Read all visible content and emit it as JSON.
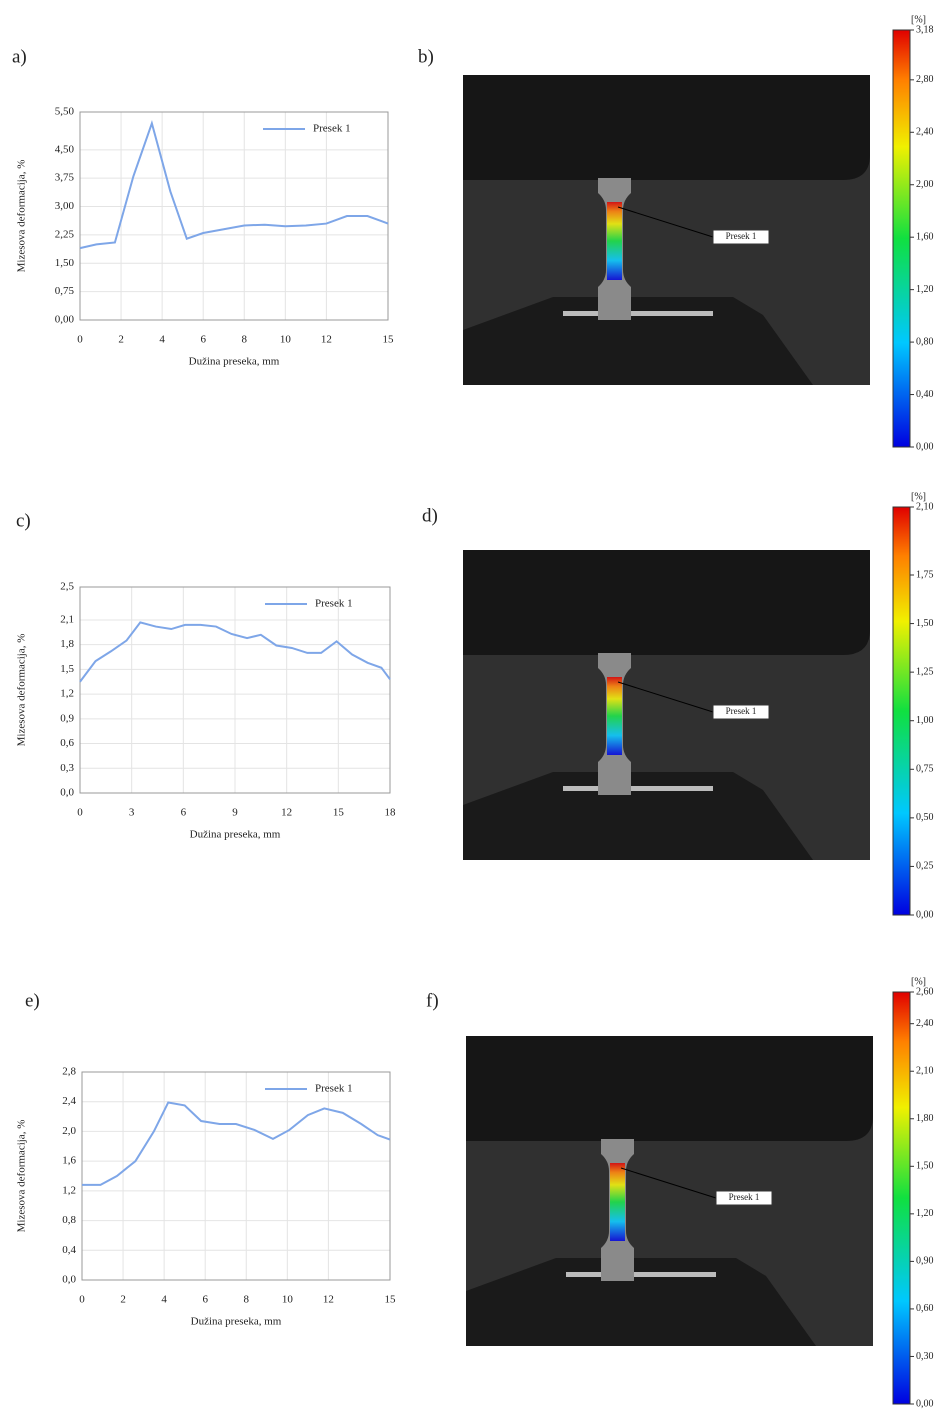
{
  "chart_data": [
    {
      "type": "line",
      "panel": "a)",
      "xlabel": "Dužina preseka, mm",
      "ylabel": "Mizesova deformacija, %",
      "x": [
        0,
        0.8,
        1.7,
        2.6,
        3.5,
        4.4,
        5.2,
        6,
        7,
        8,
        9,
        10,
        11,
        12,
        13,
        14,
        15
      ],
      "series": [
        {
          "name": "Presek 1",
          "color": "#7ea6e8",
          "values": [
            1.9,
            2.0,
            2.05,
            3.8,
            5.2,
            3.4,
            2.15,
            2.3,
            2.4,
            2.5,
            2.52,
            2.48,
            2.5,
            2.55,
            2.75,
            2.75,
            2.55
          ]
        }
      ],
      "xlim": [
        0,
        15
      ],
      "ylim": [
        0,
        5.5
      ],
      "xticks": [
        0,
        2,
        4,
        6,
        8,
        10,
        12,
        15
      ],
      "yticks": [
        {
          "value": 0,
          "label": "0,00"
        },
        {
          "value": 0.75,
          "label": "0,75"
        },
        {
          "value": 1.5,
          "label": "1,50"
        },
        {
          "value": 2.25,
          "label": "2,25"
        },
        {
          "value": 3,
          "label": "3,00"
        },
        {
          "value": 3.75,
          "label": "3,75"
        },
        {
          "value": 4.5,
          "label": "4,50"
        },
        {
          "value": 5.5,
          "label": "5,50"
        }
      ],
      "grid": true,
      "legend": "upper right"
    },
    {
      "type": "colorbar",
      "panel": "b)",
      "annotation": "Presek 1",
      "unit": "[%]",
      "ylim": [
        0,
        3.18
      ],
      "yticks": [
        {
          "value": 0,
          "label": "0,00"
        },
        {
          "value": 0.4,
          "label": "0,40"
        },
        {
          "value": 0.8,
          "label": "0,80"
        },
        {
          "value": 1.2,
          "label": "1,20"
        },
        {
          "value": 1.6,
          "label": "1,60"
        },
        {
          "value": 2,
          "label": "2,00"
        },
        {
          "value": 2.4,
          "label": "2,40"
        },
        {
          "value": 2.8,
          "label": "2,80"
        },
        {
          "value": 3.18,
          "label": "3,18"
        }
      ]
    },
    {
      "type": "line",
      "panel": "c)",
      "xlabel": "Dužina preseka, mm",
      "ylabel": "Mizesova deformacija, %",
      "x": [
        0,
        0.9,
        1.8,
        2.7,
        3.5,
        4.4,
        5.3,
        6.1,
        7,
        7.9,
        8.8,
        9.7,
        10.5,
        11.4,
        12.3,
        13.2,
        14,
        14.9,
        15.8,
        16.7,
        17.5,
        18
      ],
      "series": [
        {
          "name": "Presek 1",
          "color": "#7ea6e8",
          "values": [
            1.35,
            1.6,
            1.72,
            1.85,
            2.07,
            2.02,
            1.99,
            2.04,
            2.04,
            2.02,
            1.93,
            1.88,
            1.92,
            1.79,
            1.76,
            1.7,
            1.7,
            1.84,
            1.68,
            1.58,
            1.52,
            1.38
          ]
        }
      ],
      "xlim": [
        0,
        18
      ],
      "ylim": [
        0,
        2.5
      ],
      "xticks": [
        0,
        3,
        6,
        9,
        12,
        15,
        18
      ],
      "yticks": [
        {
          "value": 0,
          "label": "0,0"
        },
        {
          "value": 0.3,
          "label": "0,3"
        },
        {
          "value": 0.6,
          "label": "0,6"
        },
        {
          "value": 0.9,
          "label": "0,9"
        },
        {
          "value": 1.2,
          "label": "1,2"
        },
        {
          "value": 1.5,
          "label": "1,5"
        },
        {
          "value": 1.8,
          "label": "1,8"
        },
        {
          "value": 2.1,
          "label": "2,1"
        },
        {
          "value": 2.5,
          "label": "2,5"
        }
      ],
      "grid": true,
      "legend": "upper right"
    },
    {
      "type": "colorbar",
      "panel": "d)",
      "annotation": "Presek 1",
      "unit": "[%]",
      "ylim": [
        0,
        2.1
      ],
      "yticks": [
        {
          "value": 0,
          "label": "0,00"
        },
        {
          "value": 0.25,
          "label": "0,25"
        },
        {
          "value": 0.5,
          "label": "0,50"
        },
        {
          "value": 0.75,
          "label": "0,75"
        },
        {
          "value": 1,
          "label": "1,00"
        },
        {
          "value": 1.25,
          "label": "1,25"
        },
        {
          "value": 1.5,
          "label": "1,50"
        },
        {
          "value": 1.75,
          "label": "1,75"
        },
        {
          "value": 2.1,
          "label": "2,10"
        }
      ]
    },
    {
      "type": "line",
      "panel": "e)",
      "xlabel": "Dužina preseka, mm",
      "ylabel": "Mizesova deformacija, %",
      "x": [
        0,
        0.9,
        1.7,
        2.6,
        3.5,
        4.2,
        5,
        5.8,
        6.7,
        7.5,
        8.4,
        9.3,
        10.1,
        11,
        11.8,
        12.7,
        13.6,
        14.4,
        15
      ],
      "series": [
        {
          "name": "Presek 1",
          "color": "#7ea6e8",
          "values": [
            1.28,
            1.28,
            1.4,
            1.6,
            2.0,
            2.39,
            2.35,
            2.14,
            2.1,
            2.1,
            2.02,
            1.9,
            2.02,
            2.22,
            2.31,
            2.25,
            2.1,
            1.95,
            1.89
          ]
        }
      ],
      "xlim": [
        0,
        15
      ],
      "ylim": [
        0,
        2.8
      ],
      "xticks": [
        0,
        2,
        4,
        6,
        8,
        10,
        12,
        15
      ],
      "yticks": [
        {
          "value": 0,
          "label": "0,0"
        },
        {
          "value": 0.4,
          "label": "0,4"
        },
        {
          "value": 0.8,
          "label": "0,8"
        },
        {
          "value": 1.2,
          "label": "1,2"
        },
        {
          "value": 1.6,
          "label": "1,6"
        },
        {
          "value": 2,
          "label": "2,0"
        },
        {
          "value": 2.4,
          "label": "2,4"
        },
        {
          "value": 2.8,
          "label": "2,8"
        }
      ],
      "grid": true,
      "legend": "upper right"
    },
    {
      "type": "colorbar",
      "panel": "f)",
      "annotation": "Presek 1",
      "unit": "[%]",
      "ylim": [
        0,
        2.6
      ],
      "yticks": [
        {
          "value": 0,
          "label": "0,00"
        },
        {
          "value": 0.3,
          "label": "0,30"
        },
        {
          "value": 0.6,
          "label": "0,60"
        },
        {
          "value": 0.9,
          "label": "0,90"
        },
        {
          "value": 1.2,
          "label": "1,20"
        },
        {
          "value": 1.5,
          "label": "1,50"
        },
        {
          "value": 1.8,
          "label": "1,80"
        },
        {
          "value": 2.1,
          "label": "2,10"
        },
        {
          "value": 2.4,
          "label": "2,40"
        },
        {
          "value": 2.6,
          "label": "2,60"
        }
      ]
    }
  ]
}
